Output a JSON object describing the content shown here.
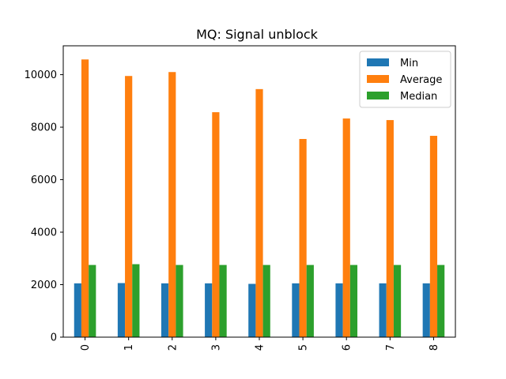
{
  "chart_data": {
    "type": "bar",
    "title": "MQ: Signal unblock",
    "xlabel": "",
    "ylabel": "",
    "categories": [
      "0",
      "1",
      "2",
      "3",
      "4",
      "5",
      "6",
      "7",
      "8"
    ],
    "series": [
      {
        "name": "Min",
        "color": "#1f77b4",
        "values": [
          2050,
          2060,
          2050,
          2050,
          2030,
          2050,
          2050,
          2050,
          2050
        ]
      },
      {
        "name": "Average",
        "color": "#ff7f0e",
        "values": [
          10580,
          9950,
          10100,
          8570,
          9450,
          7550,
          8330,
          8270,
          7670
        ]
      },
      {
        "name": "Median",
        "color": "#2ca02c",
        "values": [
          2750,
          2780,
          2750,
          2750,
          2750,
          2750,
          2750,
          2750,
          2750
        ]
      }
    ],
    "ylim": [
      0,
      11100
    ],
    "yticks": [
      0,
      2000,
      4000,
      6000,
      8000,
      10000
    ],
    "grid": false,
    "legend_position": "top-right"
  }
}
